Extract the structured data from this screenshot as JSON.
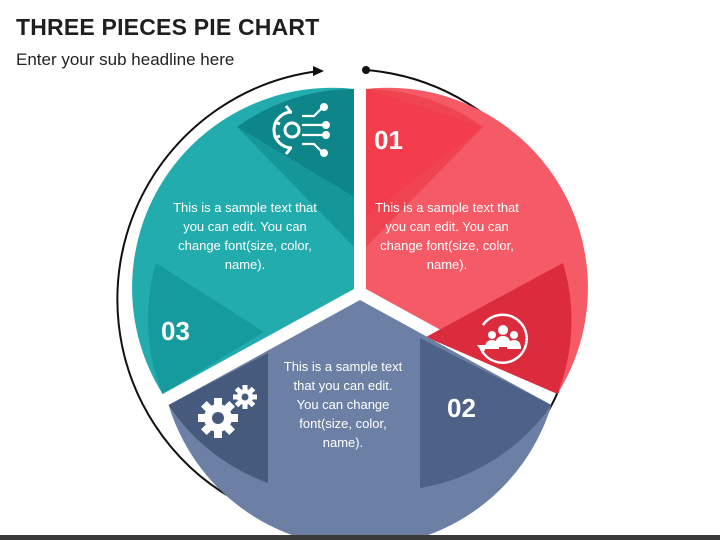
{
  "header": {
    "title": "THREE PIECES PIE CHART",
    "subtitle": "Enter your sub headline here"
  },
  "segments": [
    {
      "number": "01",
      "text": "This is a sample text that you can edit. You can change font(size, color, name).",
      "color": "#f04451",
      "icon": "team-refresh-icon"
    },
    {
      "number": "02",
      "text": "This is a sample text that you can edit. You can change font(size, color, name).",
      "color": "#5a6f93",
      "icon": "gears-icon"
    },
    {
      "number": "03",
      "text": "This is a sample text that you can edit. You can change font(size, color, name).",
      "color": "#1aa0a4",
      "icon": "gear-circuit-icon"
    }
  ],
  "colors": {
    "red_light": "#f45b66",
    "red_dark": "#dc2b3c",
    "teal_light": "#23acae",
    "teal_dark": "#0e8689",
    "slate_light": "#6b80a4",
    "slate_dark": "#455a7c"
  }
}
